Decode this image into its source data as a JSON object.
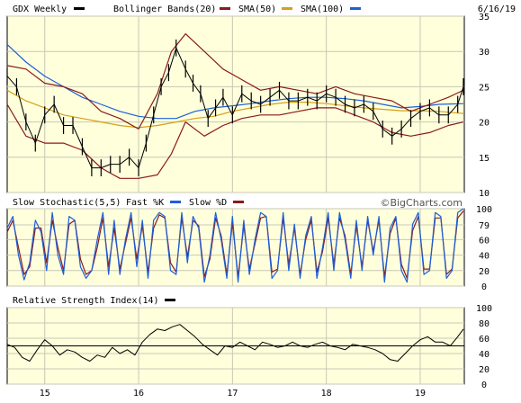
{
  "chart_data": [
    {
      "type": "line",
      "panel": "price",
      "title": "GDX Weekly",
      "date": "6/16/19",
      "legend": [
        {
          "label": "GDX Weekly",
          "color": "#000000"
        },
        {
          "label": "Bollinger Bands(20)",
          "color": "#8b1a1a"
        },
        {
          "label": "SMA(50)",
          "color": "#8b1a1a"
        },
        {
          "label": "SMA(100)",
          "color": "#d4a017"
        },
        {
          "label": "",
          "color": "#1e5fd8"
        }
      ],
      "x_ticks": [
        "15",
        "16",
        "17",
        "18",
        "19"
      ],
      "x_tick_positions": [
        2015,
        2016,
        2017,
        2018,
        2019
      ],
      "xlim": [
        2014.6,
        2019.47
      ],
      "ylim": [
        10,
        35
      ],
      "y_ticks": [
        10,
        15,
        20,
        25,
        30,
        35
      ],
      "grid": true,
      "series": [
        {
          "name": "GDX Weekly",
          "x": [
            2014.6,
            2014.7,
            2014.8,
            2014.9,
            2015.0,
            2015.1,
            2015.2,
            2015.3,
            2015.4,
            2015.5,
            2015.6,
            2015.7,
            2015.8,
            2015.9,
            2016.0,
            2016.08,
            2016.16,
            2016.24,
            2016.32,
            2016.4,
            2016.5,
            2016.58,
            2016.66,
            2016.74,
            2016.82,
            2016.9,
            2017.0,
            2017.1,
            2017.2,
            2017.3,
            2017.4,
            2017.5,
            2017.6,
            2017.7,
            2017.8,
            2017.9,
            2018.0,
            2018.1,
            2018.2,
            2018.3,
            2018.4,
            2018.5,
            2018.6,
            2018.7,
            2018.8,
            2018.9,
            2019.0,
            2019.1,
            2019.2,
            2019.3,
            2019.4,
            2019.46
          ],
          "values": [
            26.5,
            25.0,
            20.0,
            17.0,
            21.0,
            22.5,
            19.5,
            19.5,
            16.5,
            13.5,
            13.5,
            14.0,
            14.0,
            15.0,
            13.5,
            17.0,
            21.0,
            25.0,
            27.0,
            30.5,
            27.5,
            25.5,
            24.0,
            20.5,
            22.0,
            23.5,
            21.0,
            24.0,
            23.0,
            22.5,
            23.5,
            24.5,
            23.0,
            23.0,
            23.5,
            23.0,
            24.0,
            23.5,
            22.5,
            22.0,
            22.5,
            21.5,
            19.0,
            18.0,
            19.0,
            20.5,
            21.5,
            22.0,
            21.0,
            21.0,
            22.5,
            25.0
          ]
        },
        {
          "name": "Bollinger Bands(20) upper",
          "x": [
            2014.6,
            2014.8,
            2015.0,
            2015.2,
            2015.4,
            2015.6,
            2015.8,
            2016.0,
            2016.2,
            2016.35,
            2016.5,
            2016.7,
            2016.9,
            2017.1,
            2017.3,
            2017.5,
            2017.7,
            2017.9,
            2018.1,
            2018.3,
            2018.5,
            2018.7,
            2018.9,
            2019.1,
            2019.3,
            2019.46
          ],
          "values": [
            28.0,
            27.5,
            25.5,
            25.0,
            24.0,
            21.5,
            20.5,
            19.0,
            24.0,
            30.0,
            32.5,
            30.0,
            27.5,
            26.0,
            24.5,
            25.0,
            24.5,
            24.0,
            25.0,
            24.0,
            23.5,
            23.0,
            21.5,
            22.5,
            23.5,
            24.5
          ]
        },
        {
          "name": "Bollinger Bands(20) lower",
          "x": [
            2014.6,
            2014.8,
            2015.0,
            2015.2,
            2015.4,
            2015.6,
            2015.8,
            2016.0,
            2016.2,
            2016.35,
            2016.5,
            2016.7,
            2016.9,
            2017.1,
            2017.3,
            2017.5,
            2017.7,
            2017.9,
            2018.1,
            2018.3,
            2018.5,
            2018.7,
            2018.9,
            2019.1,
            2019.3,
            2019.46
          ],
          "values": [
            22.5,
            18.0,
            17.0,
            17.0,
            16.0,
            13.5,
            12.0,
            12.0,
            12.5,
            15.5,
            20.0,
            18.0,
            19.5,
            20.5,
            21.0,
            21.0,
            21.5,
            22.0,
            22.0,
            21.0,
            20.0,
            18.5,
            18.0,
            18.5,
            19.5,
            20.0
          ]
        },
        {
          "name": "SMA(50)",
          "x": [
            2014.6,
            2014.8,
            2015.0,
            2015.2,
            2015.4,
            2015.6,
            2015.8,
            2016.0,
            2016.2,
            2016.4,
            2016.6,
            2016.8,
            2017.0,
            2017.2,
            2017.4,
            2017.6,
            2017.8,
            2018.0,
            2018.2,
            2018.4,
            2018.6,
            2018.8,
            2019.0,
            2019.2,
            2019.46
          ],
          "values": [
            24.5,
            23.0,
            22.0,
            21.0,
            20.0,
            19.0,
            18.0,
            17.0,
            17.0,
            18.5,
            20.5,
            22.0,
            22.5,
            22.8,
            23.2,
            23.5,
            23.5,
            23.3,
            23.0,
            22.6,
            22.2,
            21.8,
            21.5,
            21.5,
            21.8
          ]
        },
        {
          "name": "SMA(100)",
          "x": [
            2014.6,
            2014.8,
            2015.0,
            2015.2,
            2015.4,
            2015.6,
            2015.8,
            2016.0,
            2016.2,
            2016.4,
            2016.6,
            2016.8,
            2017.0,
            2017.2,
            2017.4,
            2017.6,
            2017.8,
            2018.0,
            2018.2,
            2018.4,
            2018.6,
            2018.8,
            2019.0,
            2019.2,
            2019.46
          ],
          "values": [
            24.5,
            23.0,
            22.0,
            21.0,
            20.5,
            20.0,
            19.5,
            19.2,
            19.5,
            20.0,
            20.5,
            20.8,
            21.5,
            22.0,
            22.5,
            22.8,
            22.8,
            22.6,
            22.3,
            22.0,
            21.8,
            21.6,
            21.6,
            21.5,
            21.2
          ]
        },
        {
          "name": "",
          "x": [
            2014.6,
            2014.8,
            2015.0,
            2015.2,
            2015.4,
            2015.6,
            2015.8,
            2016.0,
            2016.2,
            2016.4,
            2016.6,
            2016.8,
            2017.0,
            2017.2,
            2017.4,
            2017.6,
            2017.8,
            2018.0,
            2018.2,
            2018.4,
            2018.6,
            2018.8,
            2019.0,
            2019.2,
            2019.46
          ],
          "values": [
            31.0,
            28.5,
            26.5,
            25.0,
            23.5,
            22.5,
            21.5,
            20.8,
            20.5,
            20.5,
            21.5,
            22.0,
            22.3,
            22.6,
            23.0,
            23.3,
            23.5,
            23.5,
            23.3,
            23.0,
            22.5,
            22.0,
            22.2,
            22.5,
            22.6
          ]
        }
      ]
    },
    {
      "type": "line",
      "panel": "stochastic",
      "title": "Slow Stochastic(5,5)",
      "watermark": "©BigCharts.com",
      "legend": [
        {
          "label": "Fast %K",
          "color": "#1e5fd8"
        },
        {
          "label": "Slow %D",
          "color": "#8b1a1a"
        }
      ],
      "ylim": [
        0,
        100
      ],
      "y_ticks": [
        0,
        20,
        40,
        60,
        79,
        100
      ],
      "series": [
        {
          "name": "Fast %K",
          "x": [
            2014.6,
            2014.66,
            2014.72,
            2014.78,
            2014.84,
            2014.9,
            2014.96,
            2015.02,
            2015.08,
            2015.14,
            2015.2,
            2015.26,
            2015.32,
            2015.38,
            2015.44,
            2015.5,
            2015.56,
            2015.62,
            2015.68,
            2015.74,
            2015.8,
            2015.86,
            2015.92,
            2015.98,
            2016.04,
            2016.1,
            2016.16,
            2016.22,
            2016.28,
            2016.34,
            2016.4,
            2016.46,
            2016.52,
            2016.58,
            2016.64,
            2016.7,
            2016.76,
            2016.82,
            2016.88,
            2016.94,
            2017.0,
            2017.06,
            2017.12,
            2017.18,
            2017.24,
            2017.3,
            2017.36,
            2017.42,
            2017.48,
            2017.54,
            2017.6,
            2017.66,
            2017.72,
            2017.78,
            2017.84,
            2017.9,
            2017.96,
            2018.02,
            2018.08,
            2018.14,
            2018.2,
            2018.26,
            2018.32,
            2018.38,
            2018.44,
            2018.5,
            2018.56,
            2018.62,
            2018.68,
            2018.74,
            2018.8,
            2018.86,
            2018.92,
            2018.98,
            2019.04,
            2019.1,
            2019.16,
            2019.22,
            2019.28,
            2019.34,
            2019.4,
            2019.46
          ],
          "values": [
            75,
            90,
            40,
            8,
            30,
            85,
            70,
            20,
            95,
            40,
            15,
            90,
            85,
            25,
            10,
            20,
            60,
            95,
            15,
            85,
            15,
            60,
            95,
            25,
            85,
            10,
            85,
            95,
            90,
            20,
            15,
            95,
            30,
            90,
            75,
            5,
            40,
            95,
            60,
            10,
            90,
            5,
            85,
            15,
            60,
            95,
            90,
            10,
            20,
            95,
            20,
            80,
            10,
            65,
            90,
            10,
            50,
            95,
            20,
            95,
            60,
            10,
            85,
            20,
            90,
            40,
            90,
            5,
            75,
            90,
            20,
            5,
            80,
            95,
            15,
            20,
            95,
            90,
            10,
            20,
            95,
            100
          ]
        },
        {
          "name": "Slow %D",
          "x": [
            2014.6,
            2014.66,
            2014.72,
            2014.78,
            2014.84,
            2014.9,
            2014.96,
            2015.02,
            2015.08,
            2015.14,
            2015.2,
            2015.26,
            2015.32,
            2015.38,
            2015.44,
            2015.5,
            2015.56,
            2015.62,
            2015.68,
            2015.74,
            2015.8,
            2015.86,
            2015.92,
            2015.98,
            2016.04,
            2016.1,
            2016.16,
            2016.22,
            2016.28,
            2016.34,
            2016.4,
            2016.46,
            2016.52,
            2016.58,
            2016.64,
            2016.7,
            2016.76,
            2016.82,
            2016.88,
            2016.94,
            2017.0,
            2017.06,
            2017.12,
            2017.18,
            2017.24,
            2017.3,
            2017.36,
            2017.42,
            2017.48,
            2017.54,
            2017.6,
            2017.66,
            2017.72,
            2017.78,
            2017.84,
            2017.9,
            2017.96,
            2018.02,
            2018.08,
            2018.14,
            2018.2,
            2018.26,
            2018.32,
            2018.38,
            2018.44,
            2018.5,
            2018.56,
            2018.62,
            2018.68,
            2018.74,
            2018.8,
            2018.86,
            2018.92,
            2018.98,
            2019.04,
            2019.1,
            2019.16,
            2019.22,
            2019.28,
            2019.34,
            2019.4,
            2019.46
          ],
          "values": [
            70,
            85,
            50,
            15,
            25,
            75,
            75,
            30,
            85,
            50,
            20,
            80,
            85,
            35,
            15,
            20,
            50,
            88,
            25,
            75,
            22,
            55,
            88,
            35,
            78,
            18,
            75,
            92,
            88,
            30,
            18,
            88,
            38,
            85,
            78,
            12,
            35,
            88,
            65,
            15,
            82,
            12,
            78,
            22,
            55,
            88,
            90,
            18,
            22,
            88,
            28,
            75,
            15,
            60,
            85,
            18,
            45,
            88,
            28,
            88,
            65,
            15,
            78,
            25,
            85,
            45,
            85,
            12,
            68,
            88,
            28,
            10,
            72,
            90,
            22,
            22,
            88,
            88,
            15,
            22,
            88,
            97
          ]
        }
      ]
    },
    {
      "type": "line",
      "panel": "rsi",
      "title": "Relative Strength Index(14)",
      "legend": [
        {
          "label": "",
          "color": "#000000"
        }
      ],
      "ylim": [
        0,
        100
      ],
      "y_ticks": [
        0,
        20,
        40,
        60,
        80,
        100
      ],
      "reference_line": 50,
      "series": [
        {
          "name": "Relative Strength Index(14)",
          "x": [
            2014.6,
            2014.68,
            2014.76,
            2014.84,
            2014.92,
            2015.0,
            2015.08,
            2015.16,
            2015.24,
            2015.32,
            2015.4,
            2015.48,
            2015.56,
            2015.64,
            2015.72,
            2015.8,
            2015.88,
            2015.96,
            2016.04,
            2016.12,
            2016.2,
            2016.28,
            2016.36,
            2016.44,
            2016.52,
            2016.6,
            2016.68,
            2016.76,
            2016.84,
            2016.92,
            2017.0,
            2017.08,
            2017.16,
            2017.24,
            2017.32,
            2017.4,
            2017.48,
            2017.56,
            2017.64,
            2017.72,
            2017.8,
            2017.88,
            2017.96,
            2018.04,
            2018.12,
            2018.2,
            2018.28,
            2018.36,
            2018.44,
            2018.52,
            2018.6,
            2018.68,
            2018.76,
            2018.84,
            2018.92,
            2019.0,
            2019.08,
            2019.16,
            2019.24,
            2019.32,
            2019.4,
            2019.46
          ],
          "values": [
            52,
            48,
            35,
            30,
            45,
            58,
            50,
            38,
            45,
            42,
            35,
            30,
            38,
            35,
            48,
            40,
            45,
            38,
            55,
            65,
            72,
            70,
            75,
            78,
            70,
            62,
            52,
            45,
            38,
            50,
            48,
            55,
            50,
            45,
            55,
            52,
            48,
            50,
            55,
            50,
            48,
            52,
            55,
            50,
            48,
            45,
            52,
            50,
            48,
            45,
            40,
            32,
            30,
            40,
            50,
            58,
            62,
            55,
            55,
            50,
            62,
            72
          ]
        }
      ]
    }
  ]
}
